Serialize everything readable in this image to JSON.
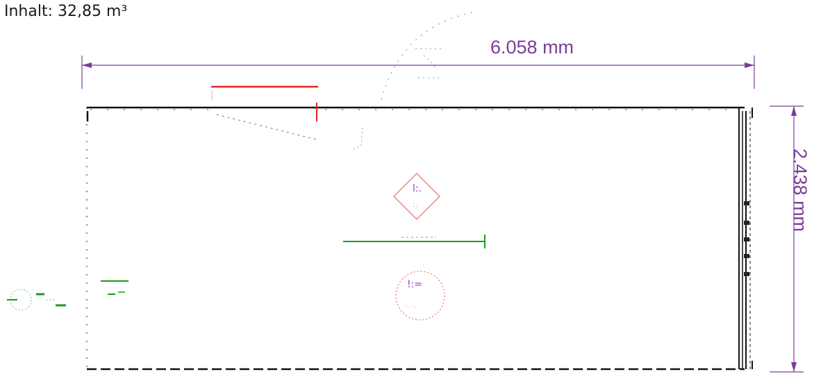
{
  "volume_text": "Inhalt: 32,85 m³",
  "dimension_length": "6.058 mm",
  "dimension_height": "2.438 mm",
  "colors": {
    "dimension": "#7a3d98",
    "outline": "#111111",
    "red_symbol": "#e82020",
    "green_symbol": "#1a9a1a",
    "pink_symbol": "#f08080"
  }
}
